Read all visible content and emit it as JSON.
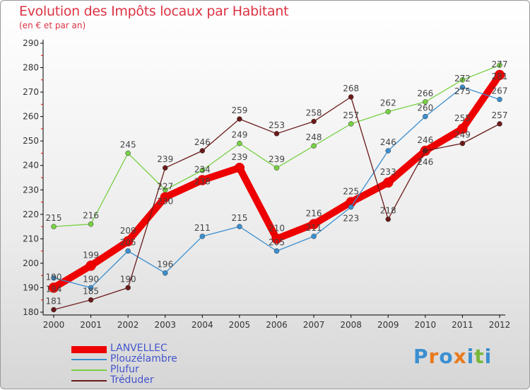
{
  "chart_data": {
    "type": "line",
    "title": "Evolution des Impôts locaux par Habitant",
    "subtitle": "(en € et par an)",
    "xlabel": "",
    "ylabel": "",
    "x": [
      "2000",
      "2001",
      "2002",
      "2003",
      "2004",
      "2005",
      "2006",
      "2007",
      "2008",
      "2009",
      "2010",
      "2011",
      "2012"
    ],
    "ylim": [
      180,
      290
    ],
    "yticks": [
      180,
      190,
      200,
      210,
      220,
      230,
      240,
      250,
      260,
      270,
      280,
      290
    ],
    "legend_position": "bottom-left",
    "series": [
      {
        "name": "LANVELLEC",
        "color": "#ee0000",
        "values": [
          190,
          199,
          209,
          227,
          234,
          239,
          210,
          216,
          225,
          233,
          246,
          255,
          277
        ]
      },
      {
        "name": "Plouzélambre",
        "color": "#3a8fd0",
        "values": [
          194,
          190,
          205,
          196,
          211,
          215,
          205,
          211,
          223,
          246,
          260,
          272,
          267
        ]
      },
      {
        "name": "Plufur",
        "color": "#77d044",
        "values": [
          215,
          216,
          245,
          230,
          238,
          249,
          239,
          248,
          257,
          262,
          266,
          275,
          281
        ]
      },
      {
        "name": "Tréduder",
        "color": "#6b1a1a",
        "values": [
          181,
          185,
          190,
          239,
          246,
          259,
          253,
          258,
          268,
          218,
          246,
          249,
          257
        ]
      }
    ]
  },
  "logo": {
    "text": "Proxiti",
    "letters": [
      "P",
      "r",
      "o",
      "x",
      "i",
      "t",
      "i"
    ],
    "colors": [
      "#3a8fd0",
      "#e87a1e",
      "#3a8fd0",
      "#e87a1e",
      "#3a8fd0",
      "#77b83a",
      "#3a8fd0"
    ]
  }
}
